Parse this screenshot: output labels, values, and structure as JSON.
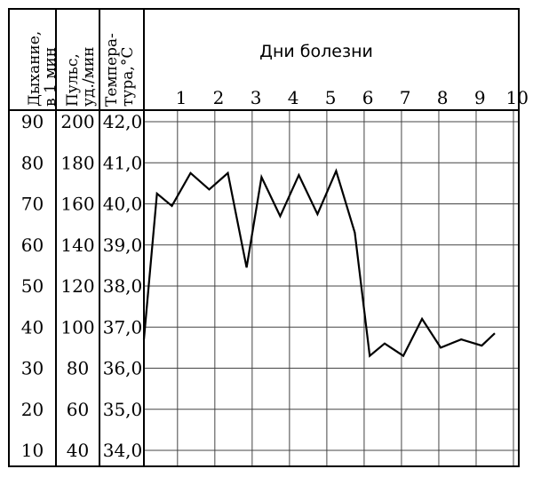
{
  "chart_data": {
    "type": "line",
    "title": "Дни болезни",
    "columns": [
      {
        "header_lines": [
          "Дыхание,",
          "в 1 мин"
        ],
        "ticks": [
          "90",
          "80",
          "70",
          "60",
          "50",
          "40",
          "30",
          "20",
          "10"
        ]
      },
      {
        "header_lines": [
          "Пульс,",
          "уд./мин"
        ],
        "ticks": [
          "200",
          "180",
          "160",
          "140",
          "120",
          "100",
          "80",
          "60",
          "40"
        ]
      },
      {
        "header_lines": [
          "Темпера-",
          "тура,°С"
        ],
        "ticks": [
          "42,0",
          "41,0",
          "40,0",
          "39,0",
          "38,0",
          "37,0",
          "36,0",
          "35,0",
          "34,0"
        ]
      }
    ],
    "x_ticks": [
      "1",
      "2",
      "3",
      "4",
      "5",
      "6",
      "7",
      "8",
      "9",
      "10"
    ],
    "xlim": [
      0.1,
      10
    ],
    "ylim": [
      34.0,
      42.0
    ],
    "x_label_offset": 0.1,
    "series": [
      {
        "points": [
          [
            0.1,
            36.7
          ],
          [
            0.45,
            40.25
          ],
          [
            0.85,
            39.95
          ],
          [
            1.35,
            40.75
          ],
          [
            1.85,
            40.35
          ],
          [
            2.35,
            40.75
          ],
          [
            2.85,
            38.45
          ],
          [
            3.25,
            40.65
          ],
          [
            3.75,
            39.7
          ],
          [
            4.25,
            40.7
          ],
          [
            4.75,
            39.75
          ],
          [
            5.25,
            40.8
          ],
          [
            5.75,
            39.3
          ],
          [
            6.15,
            36.3
          ],
          [
            6.55,
            36.6
          ],
          [
            7.05,
            36.3
          ],
          [
            7.55,
            37.2
          ],
          [
            8.05,
            36.5
          ],
          [
            8.6,
            36.7
          ],
          [
            9.15,
            36.55
          ],
          [
            9.5,
            36.85
          ]
        ]
      }
    ]
  }
}
